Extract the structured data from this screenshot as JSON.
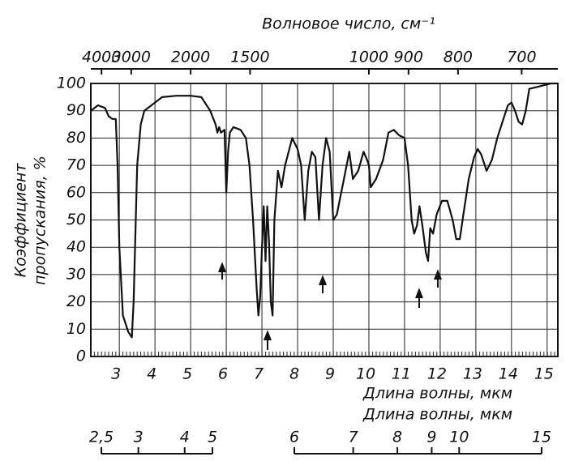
{
  "chart_data": {
    "type": "line",
    "x_label": "Длина волны, мкм",
    "x2_label": "Волновое число, см⁻¹",
    "x3_label": "Длина волны, мкм",
    "y_label_lines": [
      "Коэффициент",
      "пропускания, %"
    ],
    "color": "#111111",
    "grid": true,
    "xlim": [
      2.2,
      15.3
    ],
    "ylim": [
      0,
      100
    ],
    "xticks": [
      3,
      4,
      5,
      6,
      7,
      8,
      9,
      10,
      11,
      12,
      13,
      14,
      15
    ],
    "yticks": [
      0,
      10,
      20,
      30,
      40,
      50,
      60,
      70,
      80,
      90,
      100
    ],
    "x2ticks": [
      4000,
      3000,
      2000,
      1500,
      1000,
      900,
      800,
      700
    ],
    "x3ticks": [
      {
        "value": 2.5,
        "label": "2,5"
      },
      3,
      4,
      5,
      6,
      7,
      8,
      9,
      10,
      15
    ],
    "x": [
      2.2,
      2.4,
      2.6,
      2.7,
      2.8,
      2.9,
      2.95,
      3.0,
      3.1,
      3.25,
      3.35,
      3.4,
      3.5,
      3.6,
      3.7,
      3.9,
      4.2,
      4.6,
      5.0,
      5.3,
      5.55,
      5.7,
      5.75,
      5.8,
      5.85,
      5.95,
      6.0,
      6.05,
      6.1,
      6.2,
      6.4,
      6.55,
      6.65,
      6.75,
      6.85,
      6.9,
      6.95,
      7.0,
      7.05,
      7.1,
      7.15,
      7.2,
      7.25,
      7.3,
      7.35,
      7.45,
      7.55,
      7.65,
      7.75,
      7.85,
      8.0,
      8.1,
      8.2,
      8.3,
      8.4,
      8.5,
      8.6,
      8.7,
      8.8,
      8.9,
      9.0,
      9.1,
      9.3,
      9.45,
      9.55,
      9.7,
      9.85,
      9.95,
      10.0,
      10.05,
      10.2,
      10.4,
      10.55,
      10.7,
      10.85,
      11.0,
      11.1,
      11.2,
      11.27,
      11.35,
      11.42,
      11.5,
      11.6,
      11.66,
      11.72,
      11.8,
      11.9,
      12.05,
      12.2,
      12.35,
      12.45,
      12.55,
      12.65,
      12.8,
      12.95,
      13.05,
      13.15,
      13.3,
      13.45,
      13.6,
      13.75,
      13.9,
      14.0,
      14.1,
      14.2,
      14.3,
      14.4,
      14.5,
      14.8,
      15.1,
      15.3
    ],
    "values": [
      90,
      92,
      91,
      88,
      87,
      87,
      70,
      40,
      15,
      9,
      7,
      20,
      70,
      85,
      90,
      92,
      95,
      95.5,
      95.5,
      95,
      90,
      85,
      82,
      84,
      82,
      83,
      60,
      75,
      82,
      84,
      83,
      80,
      70,
      50,
      25,
      15,
      22,
      40,
      55,
      35,
      55,
      42,
      20,
      15,
      50,
      68,
      62,
      70,
      75,
      80,
      76,
      70,
      50,
      68,
      75,
      73,
      50,
      70,
      80,
      75,
      50,
      52,
      65,
      75,
      65,
      68,
      75,
      72,
      70,
      62,
      65,
      72,
      82,
      83,
      81,
      80,
      70,
      50,
      45,
      48,
      55,
      48,
      38,
      35,
      47,
      45,
      52,
      57,
      57,
      50,
      43,
      43,
      52,
      65,
      73,
      76,
      74,
      68,
      72,
      80,
      86,
      92,
      93,
      90,
      86,
      85,
      90,
      98,
      99,
      100,
      100
    ]
  }
}
